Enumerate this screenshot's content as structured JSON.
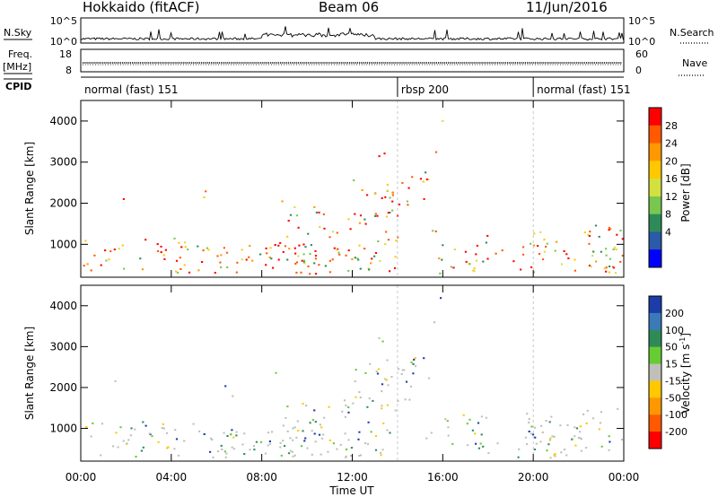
{
  "header": {
    "station": "Hokkaido (fitACF)",
    "beam": "Beam 06",
    "date": "11/Jun/2016"
  },
  "top_panels": {
    "nsky_label": "N.Sky",
    "nsky_ticks": [
      "10^5",
      "10^0"
    ],
    "nsky_right_ticks": [
      "10^5",
      "10^0"
    ],
    "nsearch_label": "N.Search",
    "freq_label": "Freq.",
    "freq_unit": "[MHz]",
    "freq_ticks": [
      "18",
      "8"
    ],
    "nave_ticks": [
      "60",
      "0"
    ],
    "nave_label": "Nave",
    "cpid_label": "CPID",
    "cpid_segments": [
      {
        "label": "normal (fast) 151",
        "start_h": 0,
        "end_h": 14
      },
      {
        "label": "rbsp 200",
        "start_h": 14,
        "end_h": 20
      },
      {
        "label": "normal (fast) 151",
        "start_h": 20,
        "end_h": 24
      }
    ]
  },
  "chart_data": [
    {
      "type": "heatmap",
      "ylabel": "Slant Range [km]",
      "xlim": [
        0,
        24
      ],
      "ylim": [
        200,
        4500
      ],
      "y_ticks": [
        {
          "value": 1000,
          "label": "1000"
        },
        {
          "value": 2000,
          "label": "2000"
        },
        {
          "value": 3000,
          "label": "3000"
        },
        {
          "value": 4000,
          "label": "4000"
        }
      ],
      "colorbar": {
        "label": "Power [dB]",
        "ticks": [
          "28",
          "24",
          "20",
          "16",
          "12",
          "8",
          "4"
        ],
        "colors": [
          "#ff0000",
          "#ff5a00",
          "#ff9800",
          "#ffc800",
          "#d4e040",
          "#78c850",
          "#2e8b57",
          "#2a5aa8",
          "#0000ff"
        ]
      }
    },
    {
      "type": "heatmap",
      "ylabel": "Slant Range [km]",
      "xlabel": "Time UT",
      "xlim": [
        0,
        24
      ],
      "ylim": [
        200,
        4500
      ],
      "x_ticks": [
        "00:00",
        "04:00",
        "08:00",
        "12:00",
        "16:00",
        "20:00",
        "00:00"
      ],
      "y_ticks": [
        {
          "value": 1000,
          "label": "1000"
        },
        {
          "value": 2000,
          "label": "2000"
        },
        {
          "value": 3000,
          "label": "3000"
        },
        {
          "value": 4000,
          "label": "4000"
        }
      ],
      "colorbar": {
        "label": "Velocity [m s",
        "label_sup": "-1",
        "label_end": "]",
        "ticks": [
          "200",
          "100",
          "50",
          "15",
          "-15",
          "-50",
          "-100",
          "-200"
        ],
        "colors": [
          "#1c3ca8",
          "#3a7ab8",
          "#2e8b57",
          "#66cc33",
          "#c0c0b8",
          "#ffc800",
          "#ff9800",
          "#ff5a00",
          "#ff0000"
        ]
      }
    }
  ]
}
